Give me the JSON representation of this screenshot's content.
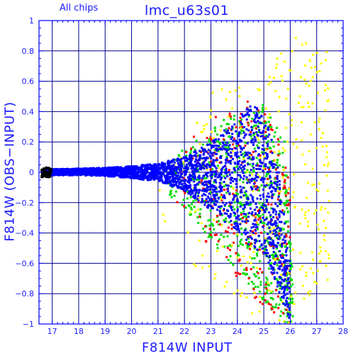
{
  "chart_data": {
    "type": "scatter",
    "title": "lmc_u63s01",
    "subtitle": "All chips",
    "xlabel": "F814W INPUT",
    "ylabel": "F814W (OBS−INPUT)",
    "xlim": [
      16.5,
      28
    ],
    "ylim": [
      -1,
      1
    ],
    "xticks": [
      "17",
      "18",
      "19",
      "20",
      "21",
      "22",
      "23",
      "24",
      "25",
      "26",
      "27",
      "28"
    ],
    "yticks": [
      "1",
      "0.8",
      "0.6",
      "0.4",
      "0.2",
      "0",
      "−0.2",
      "−0.4",
      "−0.6",
      "−0.8",
      "−1"
    ],
    "grid": true,
    "colors": {
      "axis": "#0000ff",
      "grid": "#00008b",
      "text": "#1a1aff",
      "points_blue": "#0000ff",
      "points_green": "#00dd00",
      "points_red": "#ff0000",
      "points_yellow": "#ffff00",
      "points_black": "#000000"
    },
    "series": [
      {
        "color": "#0000ff",
        "envelope": [
          {
            "x": 16.7,
            "lo": -0.02,
            "hi": 0.02
          },
          {
            "x": 18.0,
            "lo": -0.02,
            "hi": 0.025
          },
          {
            "x": 19.0,
            "lo": -0.025,
            "hi": 0.03
          },
          {
            "x": 20.0,
            "lo": -0.04,
            "hi": 0.04
          },
          {
            "x": 21.0,
            "lo": -0.06,
            "hi": 0.06
          },
          {
            "x": 22.0,
            "lo": -0.12,
            "hi": 0.1
          },
          {
            "x": 23.0,
            "lo": -0.25,
            "hi": 0.2
          },
          {
            "x": 24.0,
            "lo": -0.4,
            "hi": 0.35
          },
          {
            "x": 24.5,
            "lo": -0.5,
            "hi": 0.45
          },
          {
            "x": 25.0,
            "lo": -0.55,
            "hi": 0.4
          },
          {
            "x": 25.5,
            "lo": -0.75,
            "hi": 0.1
          },
          {
            "x": 26.0,
            "lo": -1.0,
            "hi": -0.6
          }
        ]
      },
      {
        "color": "#00dd00",
        "envelope": [
          {
            "x": 21.0,
            "lo": -0.1,
            "hi": 0.1
          },
          {
            "x": 22.0,
            "lo": -0.25,
            "hi": 0.15
          },
          {
            "x": 23.0,
            "lo": -0.45,
            "hi": 0.3
          },
          {
            "x": 24.0,
            "lo": -0.65,
            "hi": 0.4
          },
          {
            "x": 25.0,
            "lo": -0.85,
            "hi": 0.45
          },
          {
            "x": 25.8,
            "lo": -1.0,
            "hi": 0.2
          },
          {
            "x": 26.1,
            "lo": -1.0,
            "hi": -0.7
          }
        ]
      },
      {
        "color": "#ff0000",
        "envelope": [
          {
            "x": 21.5,
            "lo": -0.15,
            "hi": 0.1
          },
          {
            "x": 23.0,
            "lo": -0.5,
            "hi": 0.35
          },
          {
            "x": 24.0,
            "lo": -0.7,
            "hi": 0.45
          },
          {
            "x": 25.0,
            "lo": -0.9,
            "hi": 0.5
          },
          {
            "x": 26.0,
            "lo": -1.0,
            "hi": 0.0
          }
        ]
      },
      {
        "color": "#ffff00",
        "envelope": [
          {
            "x": 21.0,
            "lo": -0.3,
            "hi": 0.1
          },
          {
            "x": 22.0,
            "lo": -0.5,
            "hi": 0.2
          },
          {
            "x": 23.0,
            "lo": -0.8,
            "hi": 0.55
          },
          {
            "x": 24.0,
            "lo": -0.95,
            "hi": 0.6
          },
          {
            "x": 25.0,
            "lo": -1.0,
            "hi": 0.6
          },
          {
            "x": 26.0,
            "lo": -1.0,
            "hi": 0.9
          },
          {
            "x": 27.5,
            "lo": -0.7,
            "hi": 0.8
          }
        ]
      },
      {
        "color": "#000000",
        "envelope": [
          {
            "x": 16.6,
            "lo": -0.03,
            "hi": 0.03
          },
          {
            "x": 16.95,
            "lo": -0.03,
            "hi": 0.03
          }
        ]
      }
    ]
  }
}
